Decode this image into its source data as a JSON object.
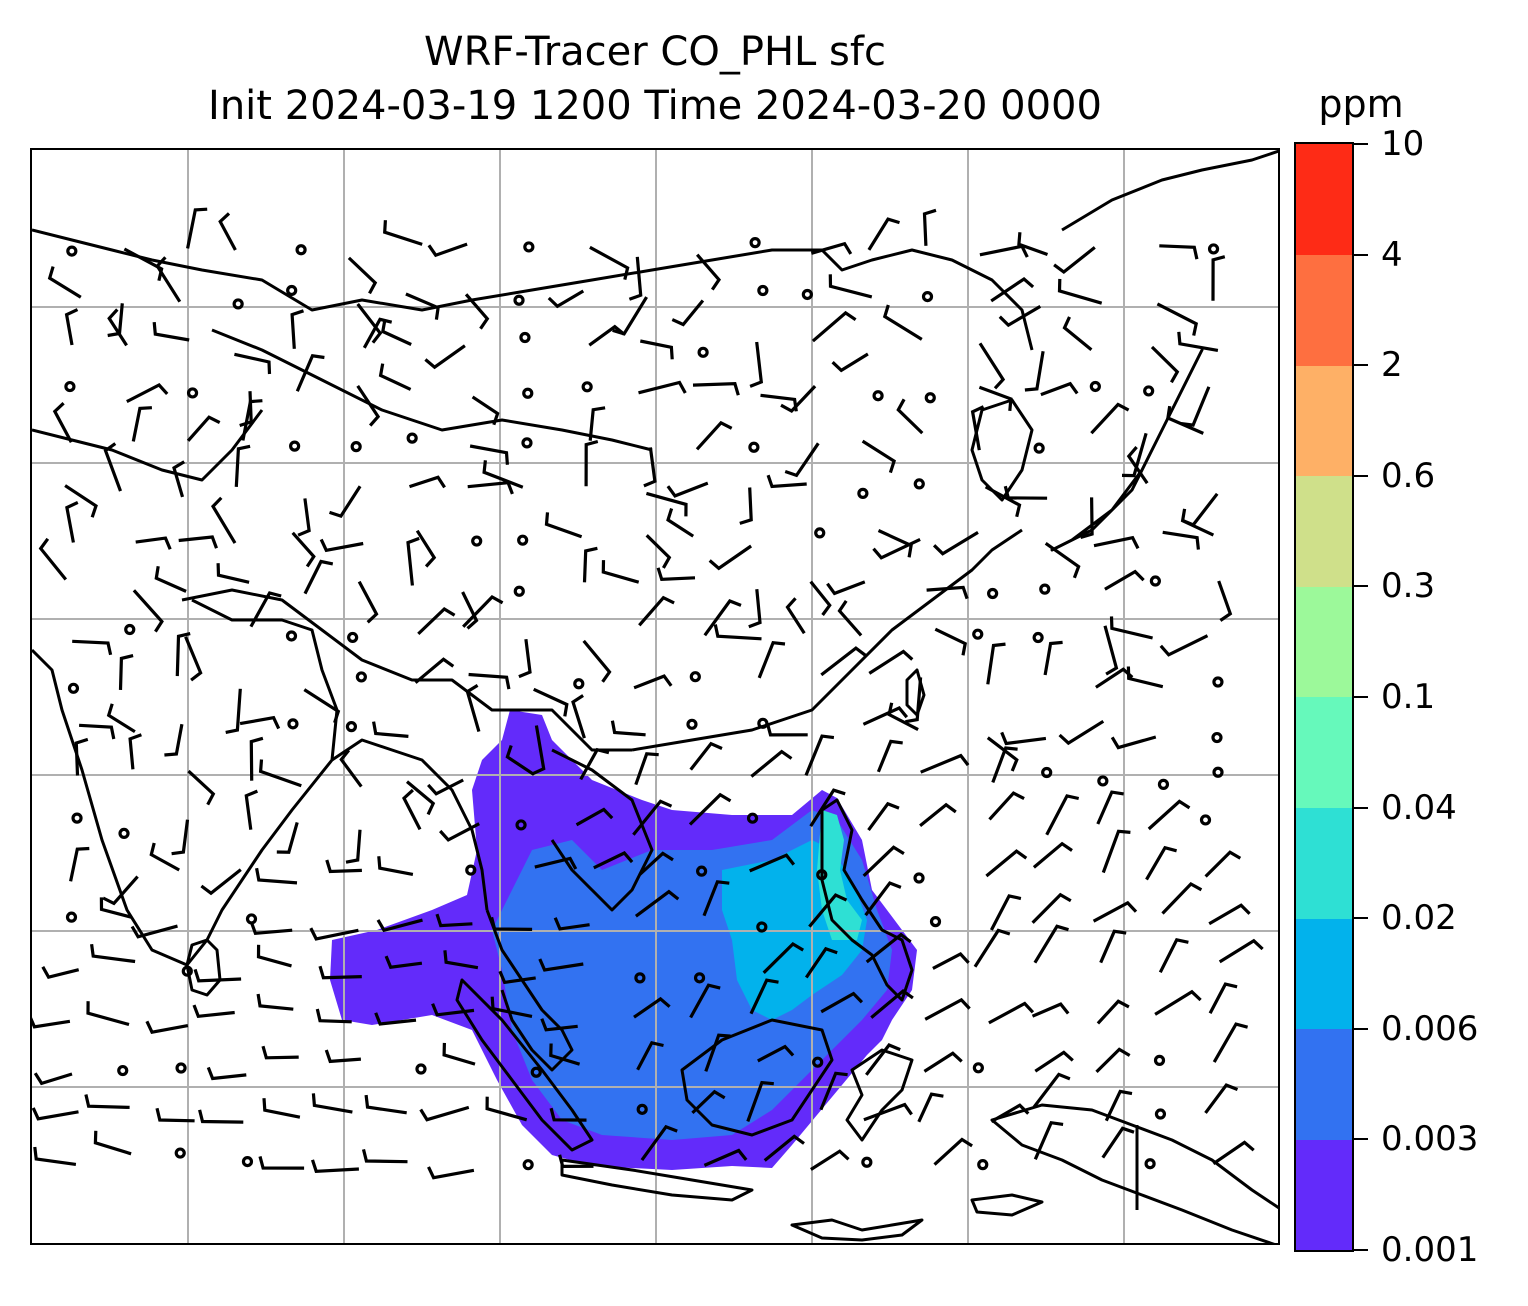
{
  "title": {
    "line1": "WRF-Tracer CO_PHL sfc",
    "line2": "Init 2024-03-19 1200 Time 2024-03-20 0000"
  },
  "colorbar": {
    "units": "ppm",
    "levels": [
      "0.001",
      "0.003",
      "0.006",
      "0.02",
      "0.04",
      "0.1",
      "0.3",
      "0.6",
      "2",
      "4",
      "10"
    ],
    "colors": [
      "#632bfa",
      "#3272f1",
      "#02b2ec",
      "#2ee0d4",
      "#66f9bb",
      "#9cf99a",
      "#cfe08a",
      "#feb066",
      "#fe6f40",
      "#fe2b16"
    ]
  },
  "map": {
    "type": "filled-contour-with-wind-barbs",
    "variable": "CO_PHL surface tracer",
    "gridlines": true,
    "coastline_color": "#000000",
    "gridline_color": "#b0b0b0"
  }
}
